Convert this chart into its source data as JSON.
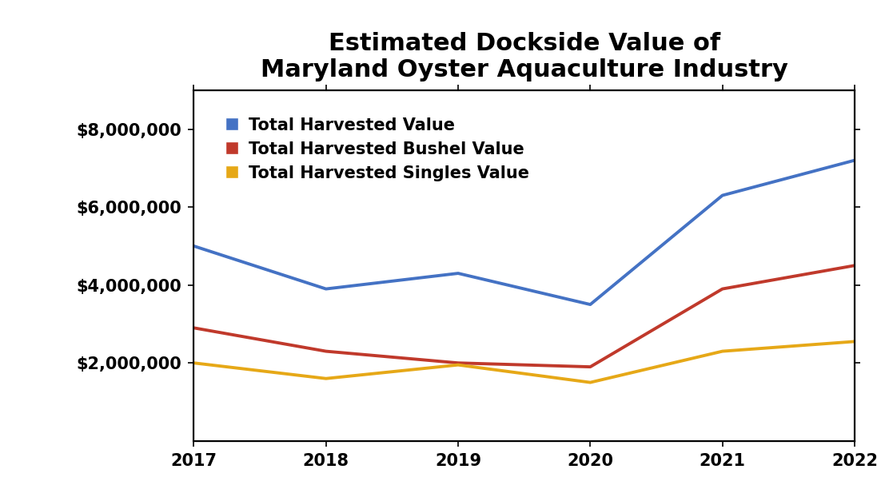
{
  "title": "Estimated Dockside Value of\nMaryland Oyster Aquaculture Industry",
  "years": [
    2017,
    2018,
    2019,
    2020,
    2021,
    2022
  ],
  "total_value": [
    5000000,
    3900000,
    4300000,
    3500000,
    6300000,
    7200000
  ],
  "bushel_value": [
    2900000,
    2300000,
    2000000,
    1900000,
    3900000,
    4500000
  ],
  "singles_value": [
    2000000,
    1600000,
    1950000,
    1500000,
    2300000,
    2550000
  ],
  "line_colors": {
    "total": "#4472C4",
    "bushel": "#C0392B",
    "singles": "#E6A817"
  },
  "line_width": 2.8,
  "ylim": [
    0,
    9000000
  ],
  "yticks": [
    2000000,
    4000000,
    6000000,
    8000000
  ],
  "ytick_labels": [
    "$2,000,000",
    "$4,000,000",
    "$6,000,000",
    "$8,000,000"
  ],
  "legend_labels": [
    "Total Harvested Value",
    "Total Harvested Bushel Value",
    "Total Harvested Singles Value"
  ],
  "title_fontsize": 22,
  "tick_fontsize": 15,
  "legend_fontsize": 15,
  "background_color": "#ffffff"
}
